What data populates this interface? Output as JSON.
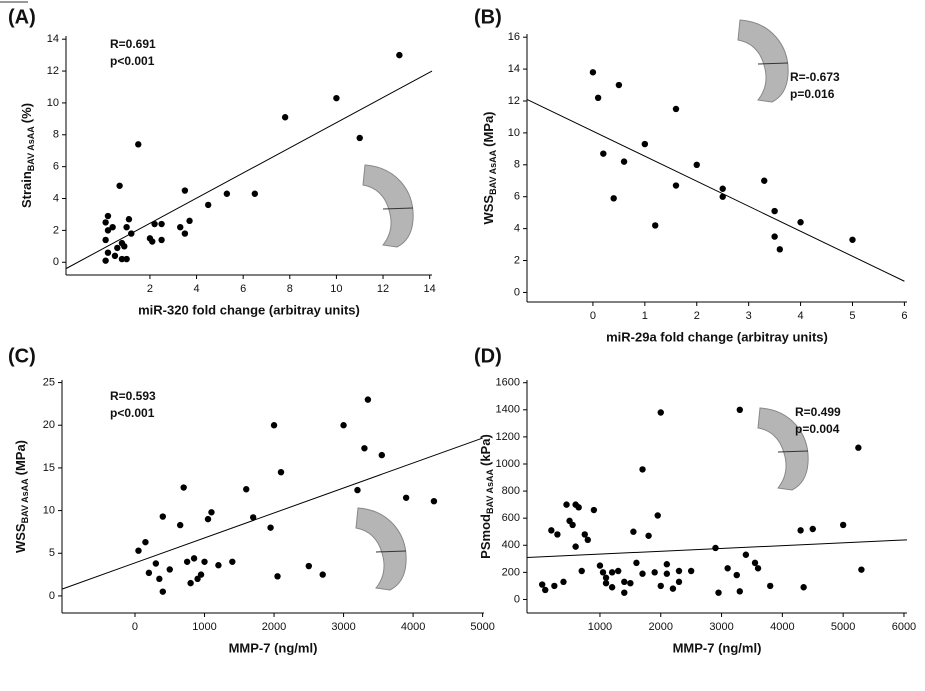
{
  "chart_data": [
    {
      "type": "scatter",
      "panel": "(A)",
      "x_label": "miR-320 fold change (arbitray units)",
      "y_label": "Strain",
      "y_label_sub": "BAV AsAA",
      "y_label_unit": "(%)",
      "annotations": [
        "R=0.691",
        "p<0.001"
      ],
      "color": "#000000",
      "xlim": [
        -1.6,
        14.1
      ],
      "ylim": [
        -0.8,
        14.2
      ],
      "xticks": [
        2,
        4,
        6,
        8,
        10,
        12,
        14
      ],
      "yticks": [
        0,
        2,
        4,
        6,
        8,
        10,
        12,
        14
      ],
      "x": [
        0.1,
        0.2,
        0.1,
        0.2,
        0.1,
        0.2,
        0.4,
        0.5,
        0.6,
        0.7,
        0.8,
        0.8,
        0.9,
        1.0,
        1.0,
        1.1,
        1.2,
        1.5,
        2.0,
        2.1,
        2.2,
        2.5,
        2.5,
        3.3,
        3.5,
        3.5,
        3.7,
        4.5,
        5.3,
        6.5,
        7.8,
        10,
        11,
        12.7
      ],
      "values": [
        0.1,
        0.6,
        1.4,
        2.0,
        2.5,
        2.9,
        2.2,
        0.4,
        0.9,
        4.8,
        1.2,
        0.2,
        1.0,
        2.2,
        0.2,
        2.7,
        1.8,
        7.4,
        1.5,
        1.3,
        2.4,
        2.4,
        1.4,
        2.2,
        1.8,
        4.5,
        2.6,
        3.6,
        4.3,
        4.3,
        9.1,
        10.3,
        7.8,
        13
      ],
      "trendline": {
        "x": [
          -1.6,
          14.1
        ],
        "values": [
          -0.4,
          12.0
        ]
      }
    },
    {
      "type": "scatter",
      "panel": "(B)",
      "x_label": "miR-29a fold change (arbitray units)",
      "y_label": "WSS",
      "y_label_sub": "BAV AsAA",
      "y_label_unit": "(MPa)",
      "annotations": [
        "R=-0.673",
        "p=0.016"
      ],
      "color": "#000000",
      "xlim": [
        -1.27,
        6.05
      ],
      "ylim": [
        -0.6,
        16.2
      ],
      "xticks": [
        0,
        1,
        2,
        3,
        4,
        5,
        6
      ],
      "yticks": [
        0,
        2,
        4,
        6,
        8,
        10,
        12,
        14,
        16
      ],
      "x": [
        0,
        0.1,
        0.2,
        0.4,
        0.5,
        0.6,
        1.0,
        1.2,
        1.6,
        1.6,
        2.0,
        2.5,
        2.5,
        3.3,
        3.5,
        3.5,
        3.6,
        4.0,
        5.0
      ],
      "values": [
        13.8,
        12.2,
        8.7,
        5.9,
        13,
        8.2,
        9.3,
        4.2,
        11.5,
        6.7,
        8.0,
        6.5,
        6.0,
        7.0,
        3.5,
        5.1,
        2.7,
        4.4,
        3.3
      ],
      "trendline": {
        "x": [
          -1.27,
          6.0
        ],
        "values": [
          12.1,
          0.7
        ]
      }
    },
    {
      "type": "scatter",
      "panel": "(C)",
      "x_label": "MMP-7 (ng/ml)",
      "y_label": "WSS",
      "y_label_sub": "BAV AsAA",
      "y_label_unit": "(MPa)",
      "annotations": [
        "R=0.593",
        "p<0.001"
      ],
      "color": "#000000",
      "xlim": [
        -1050,
        5020
      ],
      "ylim": [
        -2,
        25.3
      ],
      "xticks": [
        0,
        1000,
        2000,
        3000,
        4000,
        5000
      ],
      "yticks": [
        0,
        5,
        10,
        15,
        20,
        25
      ],
      "x": [
        50,
        150,
        200,
        300,
        350,
        400,
        400,
        500,
        650,
        700,
        750,
        800,
        850,
        900,
        950,
        1000,
        1050,
        1100,
        1200,
        1400,
        1600,
        1700,
        1950,
        2000,
        2050,
        2100,
        2500,
        2700,
        3000,
        3200,
        3300,
        3350,
        3550,
        3900,
        4300
      ],
      "values": [
        5.3,
        6.3,
        2.7,
        3.8,
        2.0,
        9.3,
        0.5,
        3.1,
        8.3,
        12.7,
        4.0,
        1.5,
        4.4,
        2.0,
        2.5,
        4.0,
        9.0,
        9.8,
        3.6,
        4.0,
        12.5,
        9.2,
        8.0,
        20,
        2.3,
        14.5,
        3.5,
        2.5,
        20,
        12.4,
        17.3,
        23,
        16.5,
        11.5,
        11.1
      ],
      "trendline": {
        "x": [
          -1050,
          5000
        ],
        "values": [
          0.8,
          18.5
        ]
      }
    },
    {
      "type": "scatter",
      "panel": "(D)",
      "x_label": "MMP-7 (ng/ml)",
      "y_label": "PSmod",
      "y_label_sub": "BAV AsAA",
      "y_label_unit": "(kPa)",
      "annotations": [
        "R=0.499",
        "p=0.004"
      ],
      "color": "#000000",
      "xlim": [
        -200,
        6050
      ],
      "ylim": [
        -100,
        1620
      ],
      "xticks": [
        1000,
        2000,
        3000,
        4000,
        5000,
        6000
      ],
      "yticks": [
        0,
        200,
        400,
        600,
        800,
        1000,
        1200,
        1400,
        1600
      ],
      "x": [
        50,
        100,
        200,
        250,
        300,
        400,
        450,
        500,
        550,
        600,
        600,
        650,
        700,
        750,
        800,
        900,
        1000,
        1050,
        1100,
        1100,
        1200,
        1200,
        1300,
        1400,
        1400,
        1500,
        1550,
        1600,
        1700,
        1700,
        1800,
        1900,
        1950,
        2000,
        2000,
        2100,
        2100,
        2200,
        2300,
        2300,
        2500,
        2900,
        2950,
        3100,
        3250,
        3300,
        3300,
        3400,
        3550,
        3600,
        3800,
        4300,
        4350,
        4500,
        5000,
        5250,
        5300
      ],
      "values": [
        110,
        70,
        510,
        100,
        480,
        130,
        700,
        580,
        550,
        700,
        390,
        680,
        210,
        480,
        440,
        660,
        250,
        200,
        120,
        160,
        90,
        200,
        210,
        130,
        50,
        120,
        500,
        270,
        960,
        190,
        470,
        200,
        620,
        1380,
        100,
        190,
        260,
        80,
        130,
        210,
        210,
        380,
        50,
        230,
        180,
        1400,
        60,
        330,
        270,
        230,
        100,
        510,
        90,
        520,
        550,
        1120,
        220
      ],
      "trendline": {
        "x": [
          -200,
          6050
        ],
        "values": [
          310,
          440
        ]
      }
    }
  ]
}
